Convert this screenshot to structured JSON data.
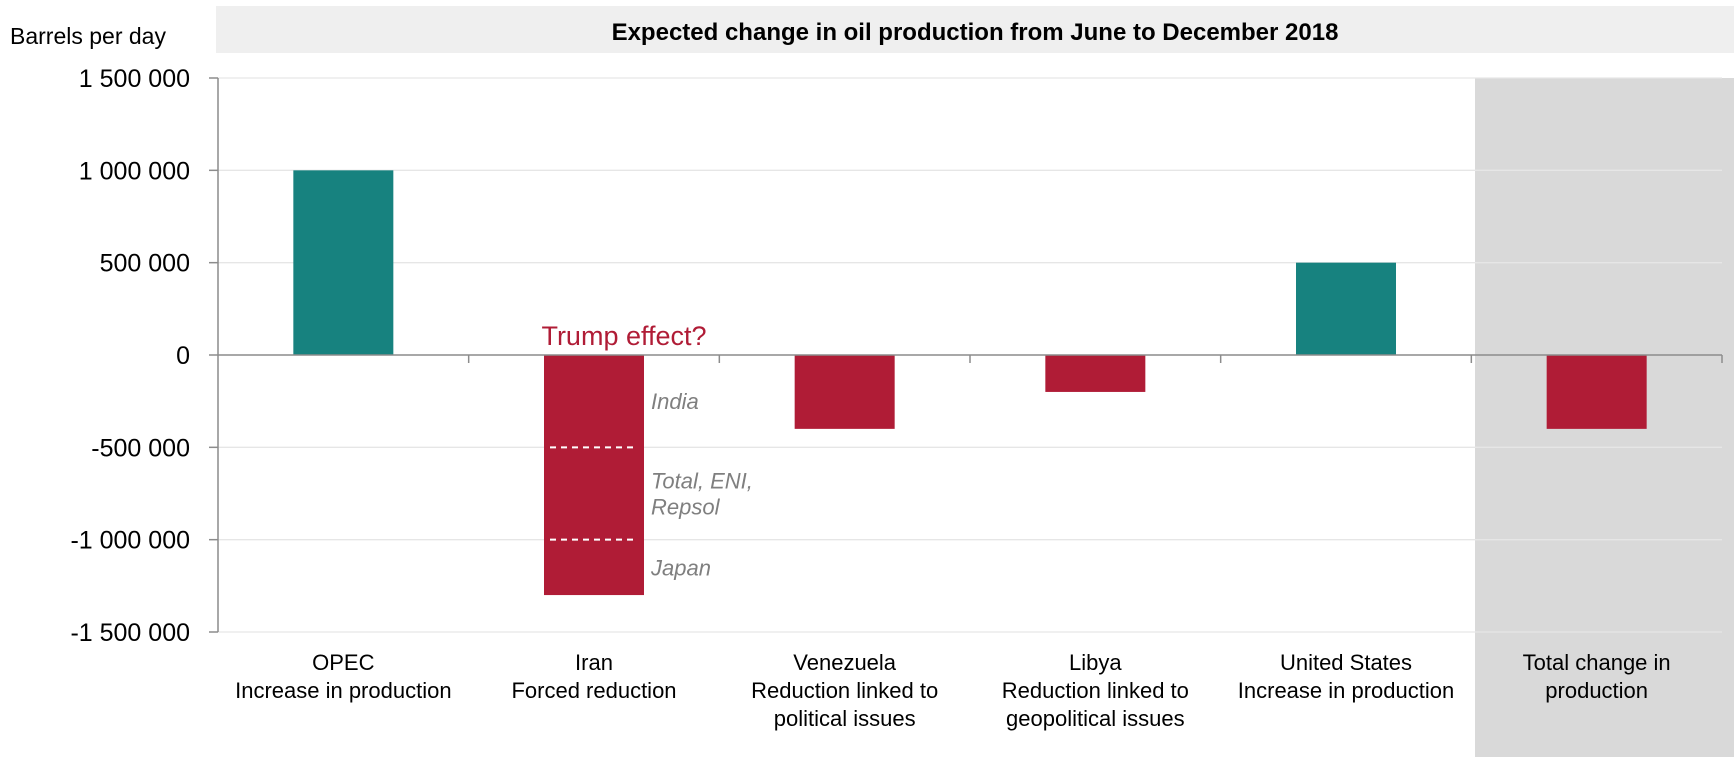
{
  "chart_data": {
    "type": "bar",
    "title": "Expected change in oil production from June to December 2018",
    "ylabel": "Barrels per day",
    "ylim": [
      -1500000,
      1500000
    ],
    "yticks": [
      1500000,
      1000000,
      500000,
      0,
      -500000,
      -1000000,
      -1500000
    ],
    "ytick_labels": [
      "1 500 000",
      "1 000 000",
      "500 000",
      "0",
      "-500 000",
      "-1 000 000",
      "-1 500 000"
    ],
    "grid": true,
    "categories": [
      [
        "OPEC",
        "Increase in production"
      ],
      [
        "Iran",
        "Forced reduction"
      ],
      [
        "Venezuela",
        "Reduction linked to",
        "political issues"
      ],
      [
        "Libya",
        "Reduction linked to",
        "geopolitical issues"
      ],
      [
        "United States",
        "Increase in production"
      ],
      [
        "Total change in",
        "production"
      ]
    ],
    "values": [
      1000000,
      -1300000,
      -400000,
      -200000,
      500000,
      -400000
    ],
    "highlighted_category_index": 5,
    "colors": {
      "increase": "#17827f",
      "decrease": "#b01c36",
      "highlight_band": "#d9d9d9",
      "title_band": "#efefef",
      "axis": "#8c8c8c",
      "grid": "#e6e6e6",
      "annotation_red": "#b01c36",
      "annotation_grey": "#7f7f7f",
      "dashed_divider": "#ffffff"
    },
    "annotations": {
      "headline": "Trump effect?",
      "iran_segments": [
        {
          "label": [
            "India"
          ],
          "from": 0,
          "to": -500000
        },
        {
          "label": [
            "Total, ENI,",
            "Repsol"
          ],
          "from": -500000,
          "to": -1000000
        },
        {
          "label": [
            "Japan"
          ],
          "from": -1000000,
          "to": -1300000
        }
      ],
      "divider_values": [
        -500000,
        -1000000
      ]
    }
  }
}
